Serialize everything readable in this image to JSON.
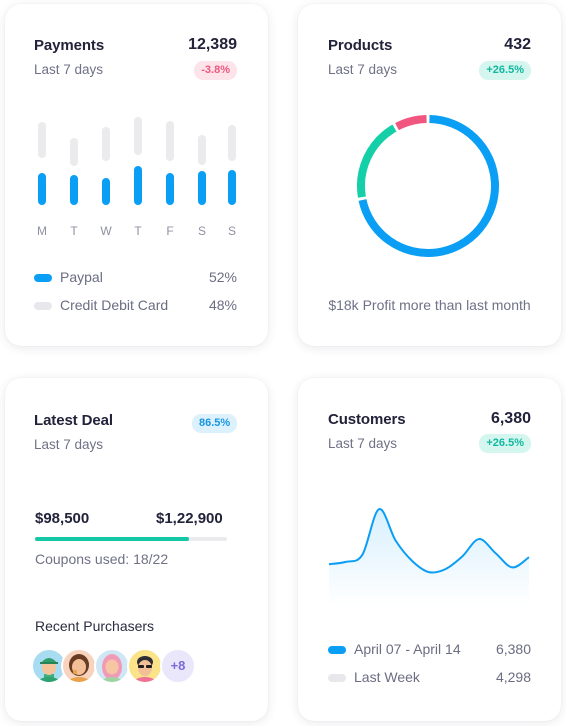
{
  "payments": {
    "title": "Payments",
    "value": "12,389",
    "subtitle": "Last 7 days",
    "badge": "-3.8%",
    "badge_color": "#f0567f",
    "chart_data": {
      "type": "bar",
      "categories": [
        "M",
        "T",
        "W",
        "T",
        "F",
        "S",
        "S"
      ],
      "values": [
        0.45,
        0.43,
        0.38,
        0.55,
        0.45,
        0.49,
        0.5
      ]
    },
    "legend": [
      {
        "label": "Paypal",
        "value": "52%",
        "color": "#0a9ef5"
      },
      {
        "label": "Credit Debit Card",
        "value": "48%",
        "color": "#e8e8ec"
      }
    ]
  },
  "products": {
    "title": "Products",
    "value": "432",
    "subtitle": "Last 7 days",
    "badge": "+26.5%",
    "badge_color": "#11c4aa",
    "chart_data": {
      "type": "pie",
      "values": [
        72,
        20,
        8
      ],
      "colors": [
        "#0a9ef5",
        "#14cfa8",
        "#f0567f"
      ]
    },
    "footer": "$18k Profit more than last month"
  },
  "deal": {
    "title": "Latest Deal",
    "subtitle": "Last 7 days",
    "badge": "86.5%",
    "badge_color": "#18a3ee",
    "amount": "$98,500",
    "target": "$1,22,900",
    "progress": 0.8,
    "coupons": "Coupons used: 18/22",
    "purchasers_title": "Recent Purchasers",
    "more": "+8"
  },
  "customers": {
    "title": "Customers",
    "value": "6,380",
    "subtitle": "Last 7 days",
    "badge": "+26.5%",
    "badge_color": "#11c4aa",
    "chart_data": {
      "type": "area",
      "x": [
        0,
        1,
        2,
        3,
        4,
        5,
        6,
        7,
        8,
        9,
        10,
        11,
        12
      ],
      "values": [
        2.0,
        2.3,
        3.2,
        9.0,
        5.0,
        2.4,
        1.0,
        1.4,
        3.0,
        5.2,
        3.4,
        1.6,
        2.9
      ]
    },
    "legend": [
      {
        "label": "April 07 - April 14",
        "value": "6,380",
        "color": "#0a9ef5"
      },
      {
        "label": "Last Week",
        "value": "4,298",
        "color": "#e8e8ec"
      }
    ]
  }
}
